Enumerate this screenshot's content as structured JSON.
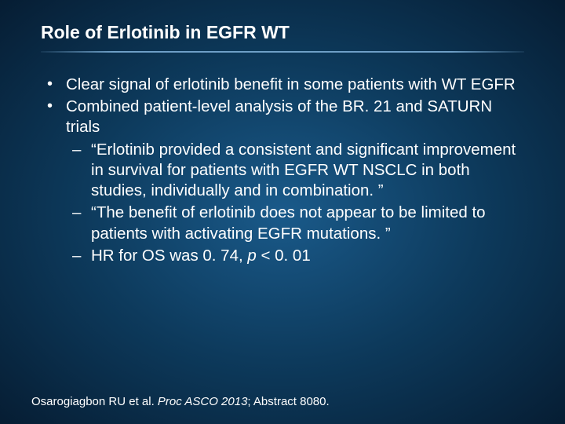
{
  "slide": {
    "title": "Role of Erlotinib in EGFR WT",
    "bullets": [
      {
        "text": "Clear signal of erlotinib benefit in some patients with WT EGFR"
      },
      {
        "text": "Combined patient-level analysis of the BR. 21 and SATURN trials",
        "sub": [
          "“Erlotinib provided a consistent and significant improvement in survival for patients with EGFR WT NSCLC in both studies, individually and in combination. ”",
          "“The benefit of erlotinib does not appear to be limited to patients with activating EGFR mutations. ”"
        ],
        "hr": {
          "prefix": "HR for OS was 0. 74, ",
          "pvar": "p",
          "suffix": " < 0. 01"
        }
      }
    ],
    "citation": {
      "authors": "Osarogiagbon RU et al. ",
      "journal": "Proc ASCO 2013",
      "rest": "; Abstract 8080."
    }
  },
  "style": {
    "background_gradient": [
      "#1a5a8a",
      "#0d3a5c",
      "#061d33"
    ],
    "text_color": "#ffffff",
    "divider_color": "#78aad2",
    "title_fontsize": 23,
    "body_fontsize": 20.5,
    "citation_fontsize": 15
  }
}
